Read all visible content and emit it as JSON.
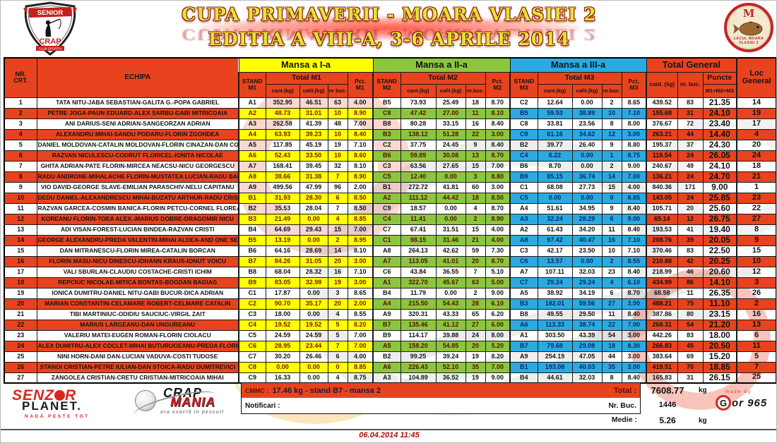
{
  "title": {
    "line1": "CUPA PRIMAVERII - MOARA VLASIEI 2",
    "line2": "EDITIA  A VIII-A, 3-6 APRILE 2014"
  },
  "logos": {
    "shield": {
      "top": "SENIOR",
      "middle": "CRAP",
      "bottom": "CLUB SPORTIV"
    },
    "round": {
      "letter": "M",
      "text": "LACUL MOARA VLASIEI 2"
    },
    "senzor": {
      "part1": "SENZ",
      "part2": "R",
      "line2": "PLANET.",
      "tagline": "NADĂ PESTE TOT"
    },
    "crapmania": {
      "word1": "CRAP",
      "word2": "MANIA",
      "tagline": "ora exactă in pescuit"
    },
    "gor": {
      "madeby": "made by",
      "g": "G",
      "rest": "or 965"
    }
  },
  "colors": {
    "accent_red": "#E8431E",
    "mansa1_yellow": "#FFFF00",
    "mansa2_green": "#8CC63E",
    "mansa3_blue": "#29ABE2",
    "title_yellow": "#E4E436"
  },
  "header": {
    "nr": "NR.\nCRT.",
    "echipa": "ECHIPA",
    "m1": {
      "band": "Mansa a I-a",
      "stand": "STAND\nM1",
      "total": "Total M1",
      "cant": "cant.(kg)",
      "calit": "calit.(kg)",
      "nrbuc": "nr buc.",
      "pct": "Pct.\nM1"
    },
    "m2": {
      "band": "Mansa a II-a",
      "stand": "STAND\nM2",
      "total": "Total M2",
      "cant": "cant.(kg)",
      "calit": "calit.(kg)",
      "nrbuc": "nr.buc.",
      "pct": "Pct.\nM2"
    },
    "m3": {
      "band": "Mansa a III-a",
      "stand": "STAND\nM3",
      "total": "Total M3",
      "cant": "cant.(kg)",
      "calit": "calit.(kg)",
      "nrbuc": "nr.buc.",
      "pct": "Pct.\nM3"
    },
    "tg": {
      "band": "Total General",
      "cant": "cant. (kg)",
      "nrbuc": "nr. buc.",
      "puncte": "Puncte",
      "puncte2": "M1+M2+M3"
    },
    "loc": "Loc\nGeneral"
  },
  "table": {
    "rows": [
      {
        "nr": "1",
        "echipa": "TATA NITU-JABA SEBASTIAN-GALITA G.-POPA GABRIEL",
        "m1": [
          "A1",
          "352.95",
          "46.51",
          "63",
          "4.00"
        ],
        "m2": [
          "B5",
          "73.93",
          "25.49",
          "18",
          "8.70"
        ],
        "m3": [
          "C2",
          "12.64",
          "0.00",
          "2",
          "8.65"
        ],
        "tg": [
          "439.52",
          "83",
          "21.35"
        ],
        "loc": "14",
        "hl": false
      },
      {
        "nr": "2",
        "echipa": "PETRE JOGA-PAUN EDUARD-ALEX SARBU-GABI MITRICOAIA",
        "m1": [
          "A2",
          "48.73",
          "31.01",
          "10",
          "8.90"
        ],
        "m2": [
          "C8",
          "47.42",
          "27.00",
          "11",
          "8.10"
        ],
        "m3": [
          "B5",
          "59.53",
          "38.89",
          "10",
          "7.10"
        ],
        "tg": [
          "155.68",
          "31",
          "24.10"
        ],
        "loc": "19",
        "hl": true
      },
      {
        "nr": "3",
        "echipa": "ANI DARIUS-SENI ADRIAN-SANGEORZAN ADRIAN",
        "m1": [
          "A3",
          "262.58",
          "41.39",
          "48",
          "7.00"
        ],
        "m2": [
          "B8",
          "80.28",
          "33.15",
          "16",
          "8.40"
        ],
        "m3": [
          "C8",
          "33.81",
          "23.56",
          "8",
          "8.00"
        ],
        "tg": [
          "376.67",
          "72",
          "23.40"
        ],
        "loc": "17",
        "hl": false
      },
      {
        "nr": "4",
        "echipa": "ALEXANDRU MIHAI-SANDU PODARU-FLORIN ZGONDEA",
        "m1": [
          "A4",
          "63.93",
          "39.23",
          "10",
          "8.40"
        ],
        "m2": [
          "B3",
          "138.12",
          "51.28",
          "22",
          "3.00"
        ],
        "m3": [
          "C9",
          "61.16",
          "34.62",
          "12",
          "3.00"
        ],
        "tg": [
          "263.21",
          "44",
          "14.40"
        ],
        "loc": "4",
        "hl": true
      },
      {
        "nr": "5",
        "echipa": "DANIEL MOLDOVAN-CATALIN MOLDOVAN-FLORIN CINAZAN-DAN COMSA",
        "m1": [
          "A5",
          "117.85",
          "45.19",
          "19",
          "7.10"
        ],
        "m2": [
          "C2",
          "37.75",
          "24.45",
          "9",
          "8.40"
        ],
        "m3": [
          "B2",
          "39.77",
          "26.40",
          "9",
          "8.80"
        ],
        "tg": [
          "195.37",
          "37",
          "24.30"
        ],
        "loc": "20",
        "hl": false
      },
      {
        "nr": "6",
        "echipa": "RAZVAN NICULESCU-CODRUT FLORICEL-IONITA NICOLAE",
        "m1": [
          "A6",
          "52.43",
          "33.50",
          "10",
          "8.60"
        ],
        "m2": [
          "B6",
          "59.89",
          "30.08",
          "13",
          "8.70"
        ],
        "m3": [
          "C4",
          "6.22",
          "0.00",
          "1",
          "8.75"
        ],
        "tg": [
          "118.54",
          "24",
          "26.05"
        ],
        "loc": "24",
        "hl": true
      },
      {
        "nr": "7",
        "echipa": "GHITA ADRIAN-PATE FLORIN-MIRCEA NEACSU-NICU GEORGESCU",
        "m1": [
          "A7",
          "168.41",
          "39.45",
          "32",
          "8.10"
        ],
        "m2": [
          "C3",
          "63.56",
          "27.65",
          "15",
          "7.00"
        ],
        "m3": [
          "B6",
          "8.70",
          "0.00",
          "2",
          "9.00"
        ],
        "tg": [
          "240.67",
          "49",
          "24.10"
        ],
        "loc": "18",
        "hl": false
      },
      {
        "nr": "8",
        "echipa": "RADU ANDRONE-MIHALACHE FLORIN-MUSTATEA LUCIAN-RADU BADICA",
        "m1": [
          "A8",
          "38.66",
          "31.38",
          "7",
          "8.90"
        ],
        "m2": [
          "C5",
          "12.40",
          "0.00",
          "3",
          "8.80"
        ],
        "m3": [
          "B9",
          "85.15",
          "36.74",
          "14",
          "7.00"
        ],
        "tg": [
          "136.21",
          "24",
          "24.70"
        ],
        "loc": "21",
        "hl": true
      },
      {
        "nr": "9",
        "echipa": "VIO DAVID-GEORGE SLAVE-EMILIAN PARASCHIV-NELU CAPITANU",
        "m1": [
          "A9",
          "499.56",
          "47.99",
          "96",
          "2.00"
        ],
        "m2": [
          "B1",
          "272.72",
          "41.81",
          "60",
          "3.00"
        ],
        "m3": [
          "C1",
          "68.08",
          "27.73",
          "15",
          "4.00"
        ],
        "tg": [
          "840.36",
          "171",
          "9.00"
        ],
        "loc": "1",
        "hl": false
      },
      {
        "nr": "10",
        "echipa": "DEDU DANIEL-ALEXANDRESCU MIHAI-BUZATU ARTHUR-RADU CRISTI",
        "m1": [
          "B1",
          "31.93",
          "28.30",
          "6",
          "8.50"
        ],
        "m2": [
          "A2",
          "111.12",
          "44.42",
          "18",
          "8.50"
        ],
        "m3": [
          "C5",
          "0.00",
          "0.00",
          "0",
          "8.85"
        ],
        "tg": [
          "143.05",
          "24",
          "25.85"
        ],
        "loc": "23",
        "hl": true
      },
      {
        "nr": "11",
        "echipa": "RAZVAN GARCEA-COSMIN BANICA-FLORIN PETCU-CORNEL FLOREA",
        "m1": [
          "B2",
          "35.53",
          "28.04",
          "7",
          "8.50"
        ],
        "m2": [
          "C9",
          "18.57",
          "0.00",
          "4",
          "8.70"
        ],
        "m3": [
          "A4",
          "51.61",
          "34.95",
          "9",
          "8.40"
        ],
        "tg": [
          "105.71",
          "20",
          "25.60"
        ],
        "loc": "22",
        "hl": false
      },
      {
        "nr": "12",
        "echipa": "KOREANU FLORIN-TOEA ALEX.-MARIUS DOBRE-DRAGOMIR NICU",
        "m1": [
          "B3",
          "21.49",
          "0.00",
          "4",
          "8.85"
        ],
        "m2": [
          "C4",
          "11.41",
          "0.00",
          "2",
          "8.90"
        ],
        "m3": [
          "A3",
          "32.24",
          "28.29",
          "6",
          "9.00"
        ],
        "tg": [
          "65.14",
          "12",
          "26.75"
        ],
        "loc": "27",
        "hl": true
      },
      {
        "nr": "13",
        "echipa": "ADI VISAN-FOREST-LUCIAN BINDEA-RAZVAN CRISTI",
        "m1": [
          "B4",
          "64.69",
          "29.43",
          "15",
          "7.00"
        ],
        "m2": [
          "C7",
          "67.41",
          "31.51",
          "15",
          "4.00"
        ],
        "m3": [
          "A2",
          "61.43",
          "34.20",
          "11",
          "8.40"
        ],
        "tg": [
          "193.53",
          "41",
          "19.40"
        ],
        "loc": "8",
        "hl": false
      },
      {
        "nr": "14",
        "echipa": "GEORGE ALEXANDRU-PREDA VALENTIN-MIHAI ALDEA-AND ONE SEBASTIAN",
        "m1": [
          "B5",
          "13.19",
          "0.00",
          "2",
          "8.95"
        ],
        "m2": [
          "C1",
          "98.15",
          "31.46",
          "21",
          "4.00"
        ],
        "m3": [
          "A8",
          "97.42",
          "40.47",
          "16",
          "7.10"
        ],
        "tg": [
          "208.76",
          "39",
          "20.05"
        ],
        "loc": "9",
        "hl": true
      },
      {
        "nr": "15",
        "echipa": "DAN MITRANESCU-FLORIN MIREA-CATALIN BORCAN",
        "m1": [
          "B6",
          "64.16",
          "28.69",
          "14",
          "8.10"
        ],
        "m2": [
          "A8",
          "264.13",
          "42.62",
          "59",
          "7.30"
        ],
        "m3": [
          "C3",
          "42.17",
          "23.50",
          "10",
          "7.10"
        ],
        "tg": [
          "370.46",
          "83",
          "22.50"
        ],
        "loc": "15",
        "hl": false
      },
      {
        "nr": "16",
        "echipa": "FLORIN MASU-NICU DINESCU-IOHANN KRAUS-IONUT VOICU",
        "m1": [
          "B7",
          "84.26",
          "31.05",
          "20",
          "3.00"
        ],
        "m2": [
          "A7",
          "113.05",
          "41.01",
          "20",
          "8.70"
        ],
        "m3": [
          "C6",
          "13.57",
          "0.00",
          "2",
          "8.55"
        ],
        "tg": [
          "210.88",
          "42",
          "20.25"
        ],
        "loc": "10",
        "hl": true
      },
      {
        "nr": "17",
        "echipa": "VALI SBURLAN-CLAUDIU COSTACHE-CRISTI ICHIM",
        "m1": [
          "B8",
          "68.04",
          "28.32",
          "16",
          "7.10"
        ],
        "m2": [
          "C6",
          "43.84",
          "36.55",
          "7",
          "5.10"
        ],
        "m3": [
          "A7",
          "107.11",
          "32.03",
          "23",
          "8.40"
        ],
        "tg": [
          "218.99",
          "46",
          "20.60"
        ],
        "loc": "12",
        "hl": false
      },
      {
        "nr": "18",
        "echipa": "REPCIUC NICOLAE-MITICA BONTAS-BOGDAN BAGIAG",
        "m1": [
          "B9",
          "83.05",
          "32.98",
          "19",
          "3.00"
        ],
        "m2": [
          "A1",
          "322.70",
          "45.67",
          "63",
          "5.00"
        ],
        "m3": [
          "C7",
          "29.24",
          "29.24",
          "4",
          "6.10"
        ],
        "tg": [
          "434.99",
          "86",
          "14.10"
        ],
        "loc": "3",
        "hl": true
      },
      {
        "nr": "19",
        "echipa": "IONICA DUMITRU-DANIEL NITU-GABI BUCUR-DICA ADRIAN",
        "m1": [
          "C1",
          "17.87",
          "0.00",
          "3",
          "8.65"
        ],
        "m2": [
          "B4",
          "11.79",
          "0.00",
          "2",
          "9.00"
        ],
        "m3": [
          "A5",
          "38.92",
          "34.19",
          "6",
          "8.70"
        ],
        "tg": [
          "68.58",
          "11",
          "26.35"
        ],
        "loc": "26",
        "hl": false
      },
      {
        "nr": "20",
        "echipa": "MARIAN CONSTANTIN-CELAMARE ROBERT-CELMARE CATALIN",
        "m1": [
          "C2",
          "90.70",
          "35.17",
          "20",
          "2.00"
        ],
        "m2": [
          "A4",
          "215.50",
          "54.43",
          "28",
          "6.10"
        ],
        "m3": [
          "B3",
          "182.01",
          "59.56",
          "27",
          "3.00"
        ],
        "tg": [
          "488.21",
          "75",
          "11.10"
        ],
        "loc": "2",
        "hl": true
      },
      {
        "nr": "21",
        "echipa": "TIBI MARTINIUC-ODIDIU SAUCIUC-VIRGIL ZAIT",
        "m1": [
          "C3",
          "18.00",
          "0.00",
          "4",
          "8.55"
        ],
        "m2": [
          "A9",
          "320.31",
          "43.33",
          "65",
          "6.20"
        ],
        "m3": [
          "B8",
          "49.55",
          "29.50",
          "11",
          "8.40"
        ],
        "tg": [
          "387.86",
          "80",
          "23.15"
        ],
        "loc": "16",
        "hl": false
      },
      {
        "nr": "22",
        "echipa": "MARIUS LARGEANU-DAN UNGUREANU",
        "m1": [
          "C4",
          "19.52",
          "19.52",
          "5",
          "8.20"
        ],
        "m2": [
          "B7",
          "135.46",
          "41.12",
          "27",
          "6.00"
        ],
        "m3": [
          "A6",
          "113.33",
          "38.74",
          "22",
          "7.00"
        ],
        "tg": [
          "268.31",
          "54",
          "21.20"
        ],
        "loc": "13",
        "hl": true
      },
      {
        "nr": "23",
        "echipa": "VALERIU MATEI-EUGEN ROMAN-FLORIN CIOLACU",
        "m1": [
          "C5",
          "24.59",
          "24.59",
          "5",
          "7.00"
        ],
        "m2": [
          "B9",
          "114.17",
          "39.88",
          "24",
          "8.00"
        ],
        "m3": [
          "A1",
          "303.50",
          "43.39",
          "54",
          "3.00"
        ],
        "tg": [
          "442.26",
          "83",
          "18.00"
        ],
        "loc": "6",
        "hl": false
      },
      {
        "nr": "24",
        "echipa": "ALEX DUMITRU-ALEX COCLET-MIHAI BUTURUGEANU-PREDA FLORIN",
        "m1": [
          "C6",
          "28.95",
          "23.44",
          "7",
          "7.00"
        ],
        "m2": [
          "A5",
          "158.20",
          "54.85",
          "20",
          "5.20"
        ],
        "m3": [
          "B7",
          "79.68",
          "29.08",
          "18",
          "8.30"
        ],
        "tg": [
          "266.83",
          "45",
          "20.50"
        ],
        "loc": "11",
        "hl": true
      },
      {
        "nr": "25",
        "echipa": "NINI HORN-DANI DAN-LUCIAN VADUVA-COSTI TUDOSE",
        "m1": [
          "C7",
          "30.20",
          "26.46",
          "6",
          "4.00"
        ],
        "m2": [
          "B2",
          "99.25",
          "39.24",
          "19",
          "8.20"
        ],
        "m3": [
          "A9",
          "254.19",
          "47.05",
          "44",
          "3.00"
        ],
        "tg": [
          "383.64",
          "69",
          "15.20"
        ],
        "loc": "5",
        "hl": false
      },
      {
        "nr": "26",
        "echipa": "STANOI CRISTIAN-PETRE IULIAN-DAN STOICA-RADU DUMITREVICI",
        "m1": [
          "C8",
          "0.00",
          "0.00",
          "0",
          "8.85"
        ],
        "m2": [
          "A6",
          "226.43",
          "52.10",
          "35",
          "7.00"
        ],
        "m3": [
          "B1",
          "193.08",
          "40.03",
          "35",
          "3.00"
        ],
        "tg": [
          "419.51",
          "70",
          "18.85"
        ],
        "loc": "7",
        "hl": true
      },
      {
        "nr": "27",
        "echipa": "ZANGOLEA CRISTIAN-CRETU CRISTIAN-MITRICOAIA MIHAI",
        "m1": [
          "C9",
          "16.33",
          "0.00",
          "4",
          "8.75"
        ],
        "m2": [
          "A3",
          "104.89",
          "36.52",
          "19",
          "9.00"
        ],
        "m3": [
          "B4",
          "44.61",
          "32.03",
          "8",
          "8.40"
        ],
        "tg": [
          "165.83",
          "31",
          "26.15"
        ],
        "loc": "25",
        "hl": false
      }
    ]
  },
  "footer": {
    "cmmc_label": "CMMC :",
    "cmmc_value": "17.46 kg - stand B7 - mansa 2",
    "notificari": "Notificari :",
    "total_label": "Total :",
    "total_value": "7608.77",
    "total_unit": "kg",
    "nrbuc_label": "Nr. Buc.",
    "nrbuc_value": "1446",
    "medie_label": "Medie :",
    "medie_value": "5.26",
    "medie_unit": "kg",
    "date": "06.04.2014 11:45"
  }
}
